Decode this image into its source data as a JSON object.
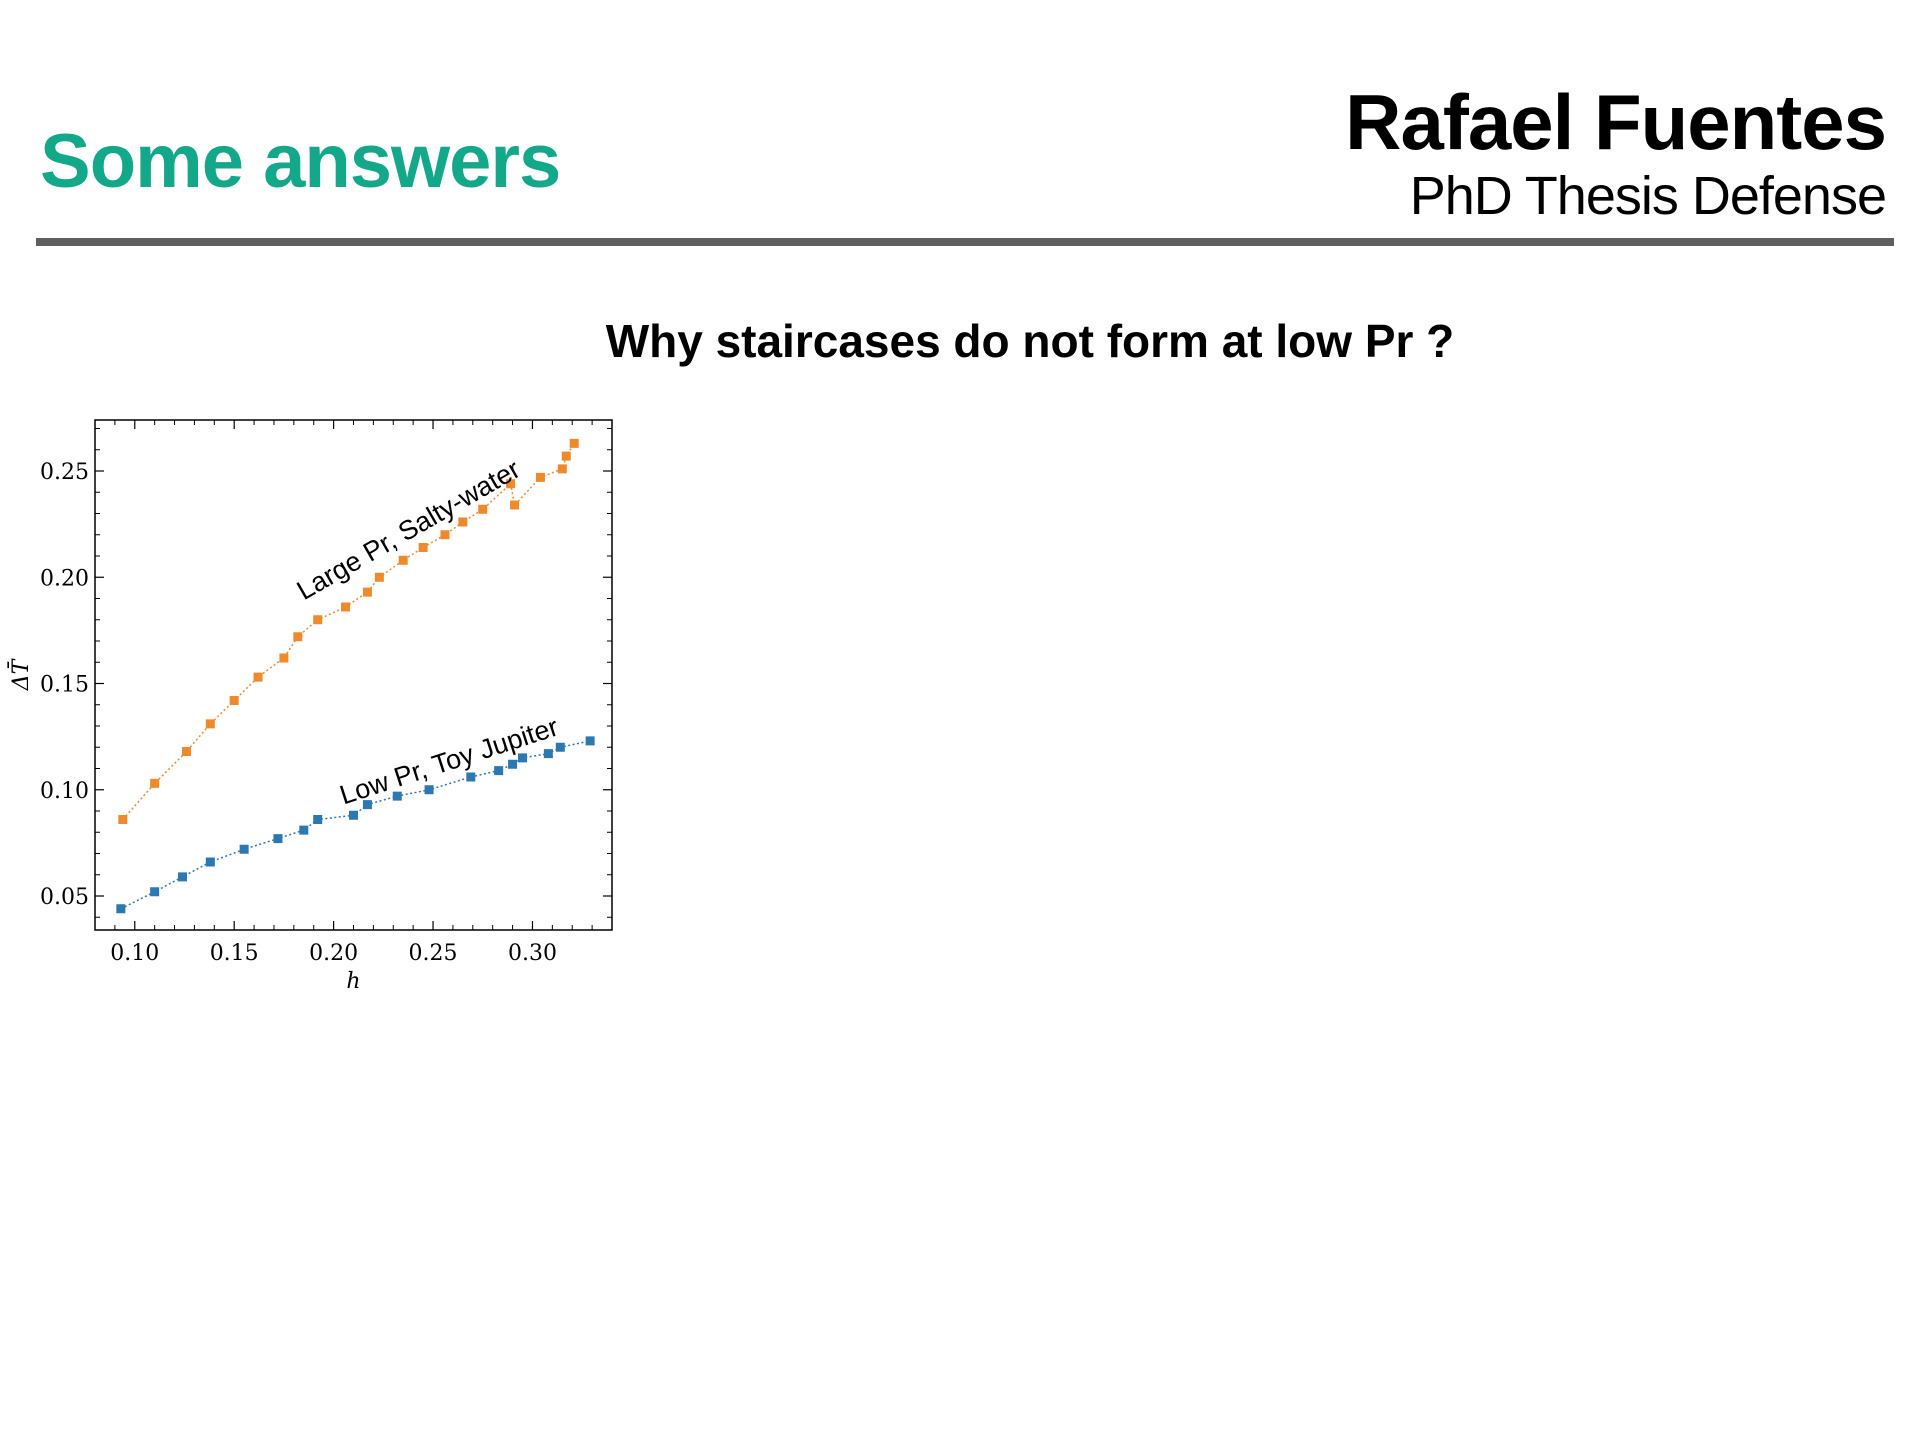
{
  "header": {
    "title": "Some answers",
    "author": "Rafael Fuentes",
    "subtitle": "PhD Thesis Defense"
  },
  "question": "Why staircases do not form at low Pr ?",
  "chart_data": {
    "type": "line",
    "title": "",
    "xlabel": "h",
    "ylabel": "ΔT̄",
    "xlim": [
      0.08,
      0.34
    ],
    "ylim": [
      0.034,
      0.274
    ],
    "x_ticks": [
      0.1,
      0.15,
      0.2,
      0.25,
      0.3
    ],
    "x_tick_labels": [
      "0.10",
      "0.15",
      "0.20",
      "0.25",
      "0.30"
    ],
    "y_ticks": [
      0.05,
      0.1,
      0.15,
      0.2,
      0.25
    ],
    "y_tick_labels": [
      "0.05",
      "0.10",
      "0.15",
      "0.20",
      "0.25"
    ],
    "grid": false,
    "series": [
      {
        "color": "#ee8a2c",
        "x": [
          0.094,
          0.11,
          0.126,
          0.138,
          0.15,
          0.162,
          0.175,
          0.182,
          0.192,
          0.206,
          0.217,
          0.223,
          0.235,
          0.245,
          0.256,
          0.265,
          0.275,
          0.289,
          0.291,
          0.304,
          0.315,
          0.317,
          0.321
        ],
        "y": [
          0.086,
          0.103,
          0.118,
          0.131,
          0.142,
          0.153,
          0.162,
          0.172,
          0.18,
          0.186,
          0.193,
          0.2,
          0.208,
          0.214,
          0.22,
          0.226,
          0.232,
          0.244,
          0.234,
          0.247,
          0.251,
          0.257,
          0.263
        ]
      },
      {
        "color": "#2c78b0",
        "x": [
          0.093,
          0.11,
          0.124,
          0.138,
          0.155,
          0.172,
          0.185,
          0.192,
          0.21,
          0.217,
          0.232,
          0.248,
          0.269,
          0.283,
          0.29,
          0.295,
          0.308,
          0.314,
          0.329
        ],
        "y": [
          0.044,
          0.052,
          0.059,
          0.066,
          0.072,
          0.077,
          0.081,
          0.086,
          0.088,
          0.093,
          0.097,
          0.1,
          0.106,
          0.109,
          0.112,
          0.115,
          0.117,
          0.12,
          0.123
        ]
      }
    ],
    "annotations": [
      {
        "text": "Large Pr, Salty-water",
        "x": 0.185,
        "y": 0.189,
        "angle": -30
      },
      {
        "text": "Low Pr, Toy Jupiter",
        "x": 0.205,
        "y": 0.093,
        "angle": -18
      }
    ]
  }
}
